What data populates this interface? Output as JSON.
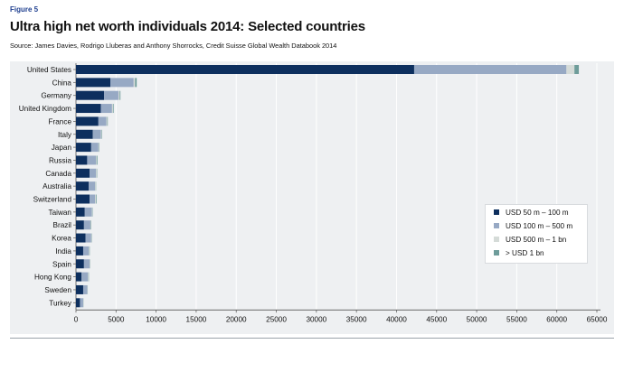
{
  "figure_label": "Figure 5",
  "title": "Ultra high net worth individuals 2014: Selected countries",
  "source": "Source: James Davies, Rodrigo Lluberas and Anthony Shorrocks, Credit Suisse Global Wealth Databook 2014",
  "chart_data": {
    "type": "bar",
    "orientation": "horizontal",
    "stacked": true,
    "title": "Ultra high net worth individuals 2014: Selected countries",
    "xlabel": "",
    "ylabel": "",
    "xlim": [
      0,
      65000
    ],
    "xticks": [
      0,
      5000,
      10000,
      15000,
      20000,
      25000,
      30000,
      35000,
      40000,
      45000,
      50000,
      55000,
      60000,
      65000
    ],
    "xtick_labels": [
      "0",
      "5000",
      "10000",
      "15000",
      "20000",
      "25000",
      "30000",
      "35000",
      "40000",
      "45000",
      "50000",
      "55000",
      "60000",
      "65000"
    ],
    "grid": true,
    "legend_position": "right",
    "categories": [
      "United States",
      "China",
      "Germany",
      "United Kingdom",
      "France",
      "Italy",
      "Japan",
      "Russia",
      "Canada",
      "Australia",
      "Switzerland",
      "Taiwan",
      "Brazil",
      "Korea",
      "India",
      "Spain",
      "Hong Kong",
      "Sweden",
      "Turkey"
    ],
    "series": [
      {
        "name": "USD 50 m – 100 m",
        "color": "#0d2f5e",
        "values": [
          42200,
          4300,
          3500,
          3100,
          2800,
          2100,
          1900,
          1400,
          1700,
          1600,
          1700,
          1100,
          1000,
          1200,
          900,
          1000,
          700,
          900,
          500
        ]
      },
      {
        "name": "USD 100 m – 500 m",
        "color": "#97a9c4",
        "values": [
          19000,
          2900,
          1800,
          1400,
          1000,
          1000,
          900,
          1100,
          800,
          800,
          700,
          900,
          800,
          700,
          700,
          700,
          800,
          500,
          400
        ]
      },
      {
        "name": "USD 500 m – 1 bn",
        "color": "#d5dbd8",
        "values": [
          1000,
          180,
          150,
          120,
          100,
          90,
          80,
          70,
          80,
          70,
          90,
          60,
          60,
          50,
          60,
          50,
          60,
          40,
          30
        ]
      },
      {
        "name": "> USD 1 bn",
        "color": "#6e9c9a",
        "values": [
          550,
          200,
          100,
          80,
          70,
          60,
          50,
          110,
          60,
          40,
          80,
          40,
          50,
          40,
          60,
          30,
          50,
          30,
          20
        ]
      }
    ]
  }
}
